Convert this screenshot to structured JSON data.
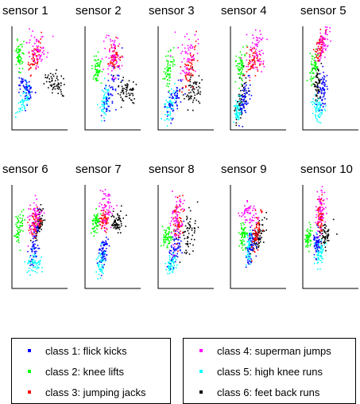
{
  "chart_data": {
    "type": "scatter",
    "panels": [
      {
        "title": "sensor 1"
      },
      {
        "title": "sensor 2"
      },
      {
        "title": "sensor 3"
      },
      {
        "title": "sensor 4"
      },
      {
        "title": "sensor 5"
      },
      {
        "title": "sensor 6"
      },
      {
        "title": "sensor 7"
      },
      {
        "title": "sensor 8"
      },
      {
        "title": "sensor 9"
      },
      {
        "title": "sensor 10"
      }
    ],
    "series": [
      {
        "name": "class 1: flick kicks",
        "color": "#0000ff"
      },
      {
        "name": "class 2: knee lifts",
        "color": "#00ff00"
      },
      {
        "name": "class 3: jumping jacks",
        "color": "#ff0000"
      },
      {
        "name": "class 4: superman jumps",
        "color": "#ff00ff"
      },
      {
        "name": "class 5: high knee runs",
        "color": "#00ffff"
      },
      {
        "name": "class 6: feet back runs",
        "color": "#000000"
      }
    ],
    "axes_ticks": false,
    "grid": false,
    "legend_placement": "bottom, two boxes"
  }
}
